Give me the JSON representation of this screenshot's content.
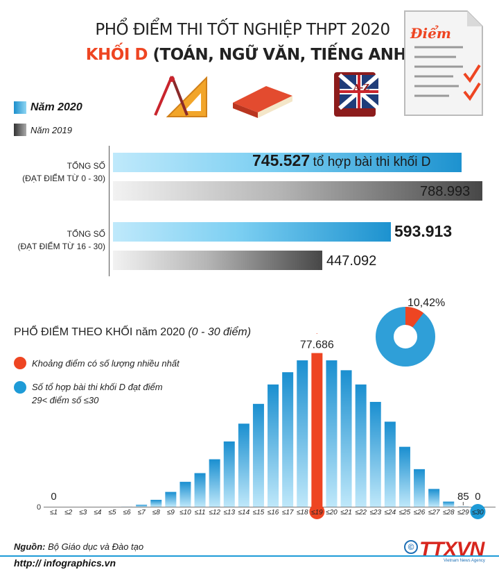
{
  "header": {
    "title_line1": "PHỔ ĐIỂM THI TỐT NGHIỆP THPT 2020",
    "title_line2_highlight": "KHỐI D",
    "title_line2_rest": " (TOÁN, NGỮ VĂN, TIẾNG ANH)",
    "paper_icon_label": "Điểm"
  },
  "legend_years": [
    {
      "label": "Năm 2020",
      "color": "#1e9bd7"
    },
    {
      "label": "Năm 2019",
      "color": "#555555"
    }
  ],
  "totals_chart": {
    "type": "bar",
    "groups": [
      {
        "label_line1": "TỔNG SỐ",
        "label_line2": "(ĐẠT ĐIỂM TỪ 0 - 30)",
        "value_2020": 745527,
        "value_2020_text": "745.527",
        "value_2020_suffix": "tổ hợp bài thi khối D",
        "value_2019": 788993,
        "value_2019_text": "788.993"
      },
      {
        "label_line1": "TỔNG SỐ",
        "label_line2": "(ĐẠT ĐIỂM TỪ 16 - 30)",
        "value_2020": 593913,
        "value_2020_text": "593.913",
        "value_2019": 447092,
        "value_2019_text": "447.092"
      }
    ]
  },
  "section": {
    "title": "PHỔ ĐIỂM THEO KHỐI năm 2020 ",
    "title_italic": "(0 - 30 điểm)"
  },
  "legend_dist": [
    {
      "text": "Khoảng điểm có số lượng nhiều nhất",
      "color": "#ee4522"
    },
    {
      "text_line1": "Số tổ hợp bài thi khối D đạt điểm",
      "text_line2": "29< điểm số ≤30",
      "color": "#1e9bd7"
    }
  ],
  "donut": {
    "percent_label": "10,42%",
    "value": 10.42
  },
  "chart_data": {
    "type": "bar",
    "title": "PHỔ ĐIỂM THEO KHỐI năm 2020 (0 - 30 điểm)",
    "categories": [
      "≤1",
      "≤2",
      "≤3",
      "≤4",
      "≤5",
      "≤6",
      "≤7",
      "≤8",
      "≤9",
      "≤10",
      "≤11",
      "≤12",
      "≤13",
      "≤14",
      "≤15",
      "≤16",
      "≤17",
      "≤18",
      "≤19",
      "≤20",
      "≤21",
      "≤22",
      "≤23",
      "≤24",
      "≤25",
      "≤26",
      "≤27",
      "≤28",
      "≤29",
      "≤30"
    ],
    "values": [
      0,
      0,
      0,
      0,
      2,
      30,
      1000,
      3500,
      7500,
      12600,
      17000,
      24000,
      33000,
      42000,
      52000,
      61800,
      68000,
      74000,
      77686,
      74000,
      69000,
      61800,
      53000,
      43000,
      30300,
      19000,
      9000,
      2600,
      85,
      0
    ],
    "highlight_index": 18,
    "annotations": [
      {
        "index": 0,
        "text": "0"
      },
      {
        "index": 18,
        "text": "77.686"
      },
      {
        "index": 28,
        "text": "85"
      },
      {
        "index": 29,
        "text": "0"
      }
    ],
    "y_zero_label": "0",
    "ylim": [
      0,
      80000
    ],
    "bar_color": "#1e9bd7",
    "highlight_color": "#ee4522"
  },
  "footer": {
    "source_label": "Nguồn:",
    "source_text": " Bộ Giáo dục và Đào tạo",
    "url": "http:// infographics.vn",
    "logo": "TTXVN",
    "logo_sub": "Vietnam News Agency",
    "copyright": "©"
  }
}
